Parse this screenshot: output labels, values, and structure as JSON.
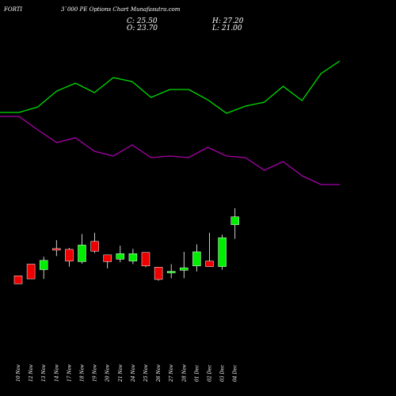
{
  "header": {
    "symbol": "FORTI",
    "subtitle": "3`000 PE Options Chart Munafasutra.com"
  },
  "ohlc": {
    "close_text": "C: 25.50",
    "open_text": "O: 23.70",
    "high_text": "H: 27.20",
    "low_text": "L: 21.00"
  },
  "colors": {
    "background": "#000000",
    "up": "#00ee00",
    "down": "#ee0000",
    "doji": "#ffffff",
    "line_upper": "#00dd00",
    "line_lower": "#aa00aa",
    "wick": "#ffffff"
  },
  "chart_data": {
    "type": "candlestick",
    "categories": [
      "10 Nov",
      "12 Nov",
      "13 Nov",
      "14 Nov",
      "17 Nov",
      "18 Nov",
      "19 Nov",
      "20 Nov",
      "21 Nov",
      "24 Nov",
      "25 Nov",
      "26 Nov",
      "27 Nov",
      "28 Nov",
      "01 Dec",
      "02 Dec",
      "03 Dec",
      "04 Dec"
    ],
    "candles": [
      {
        "open": 5.0,
        "high": 5.0,
        "low": 3.7,
        "close": 3.7
      },
      {
        "open": 6.9,
        "high": 6.9,
        "low": 4.5,
        "close": 4.5
      },
      {
        "open": 6.0,
        "high": 8.1,
        "low": 4.5,
        "close": 7.5
      },
      {
        "open": 9.3,
        "high": 10.8,
        "low": 8.2,
        "close": 9.1
      },
      {
        "open": 9.3,
        "high": 9.5,
        "low": 6.5,
        "close": 7.4
      },
      {
        "open": 7.3,
        "high": 11.8,
        "low": 7.0,
        "close": 10.0
      },
      {
        "open": 10.6,
        "high": 12.0,
        "low": 8.7,
        "close": 9.0
      },
      {
        "open": 8.4,
        "high": 8.4,
        "low": 6.2,
        "close": 7.3
      },
      {
        "open": 7.7,
        "high": 9.9,
        "low": 7.2,
        "close": 8.6
      },
      {
        "open": 7.4,
        "high": 9.4,
        "low": 6.9,
        "close": 8.6
      },
      {
        "open": 8.8,
        "high": 8.8,
        "low": 6.4,
        "close": 6.6
      },
      {
        "open": 6.4,
        "high": 6.4,
        "low": 4.2,
        "close": 4.4
      },
      {
        "open": 5.5,
        "high": 6.9,
        "low": 4.6,
        "close": 5.6
      },
      {
        "open": 5.9,
        "high": 8.9,
        "low": 4.6,
        "close": 6.3
      },
      {
        "open": 6.6,
        "high": 10.1,
        "low": 5.7,
        "close": 8.9
      },
      {
        "open": 7.4,
        "high": 12.0,
        "low": 6.6,
        "close": 6.5
      },
      {
        "open": 6.5,
        "high": 11.7,
        "low": 6.0,
        "close": 11.2
      },
      {
        "open": 13.3,
        "high": 16.0,
        "low": 11.0,
        "close": 14.6
      }
    ],
    "ylim": [
      0,
      16.5
    ],
    "upper_line": [
      142,
      142,
      135,
      115,
      105,
      117,
      98,
      103,
      123,
      113,
      113,
      126,
      143,
      134,
      129,
      109,
      127,
      93,
      77
    ],
    "lower_line": [
      147,
      147,
      164,
      180,
      174,
      191,
      197,
      183,
      199,
      197,
      199,
      186,
      197,
      199,
      215,
      204,
      222,
      233,
      233
    ],
    "title": "",
    "xlabel": "",
    "ylabel": "",
    "grid": false
  }
}
